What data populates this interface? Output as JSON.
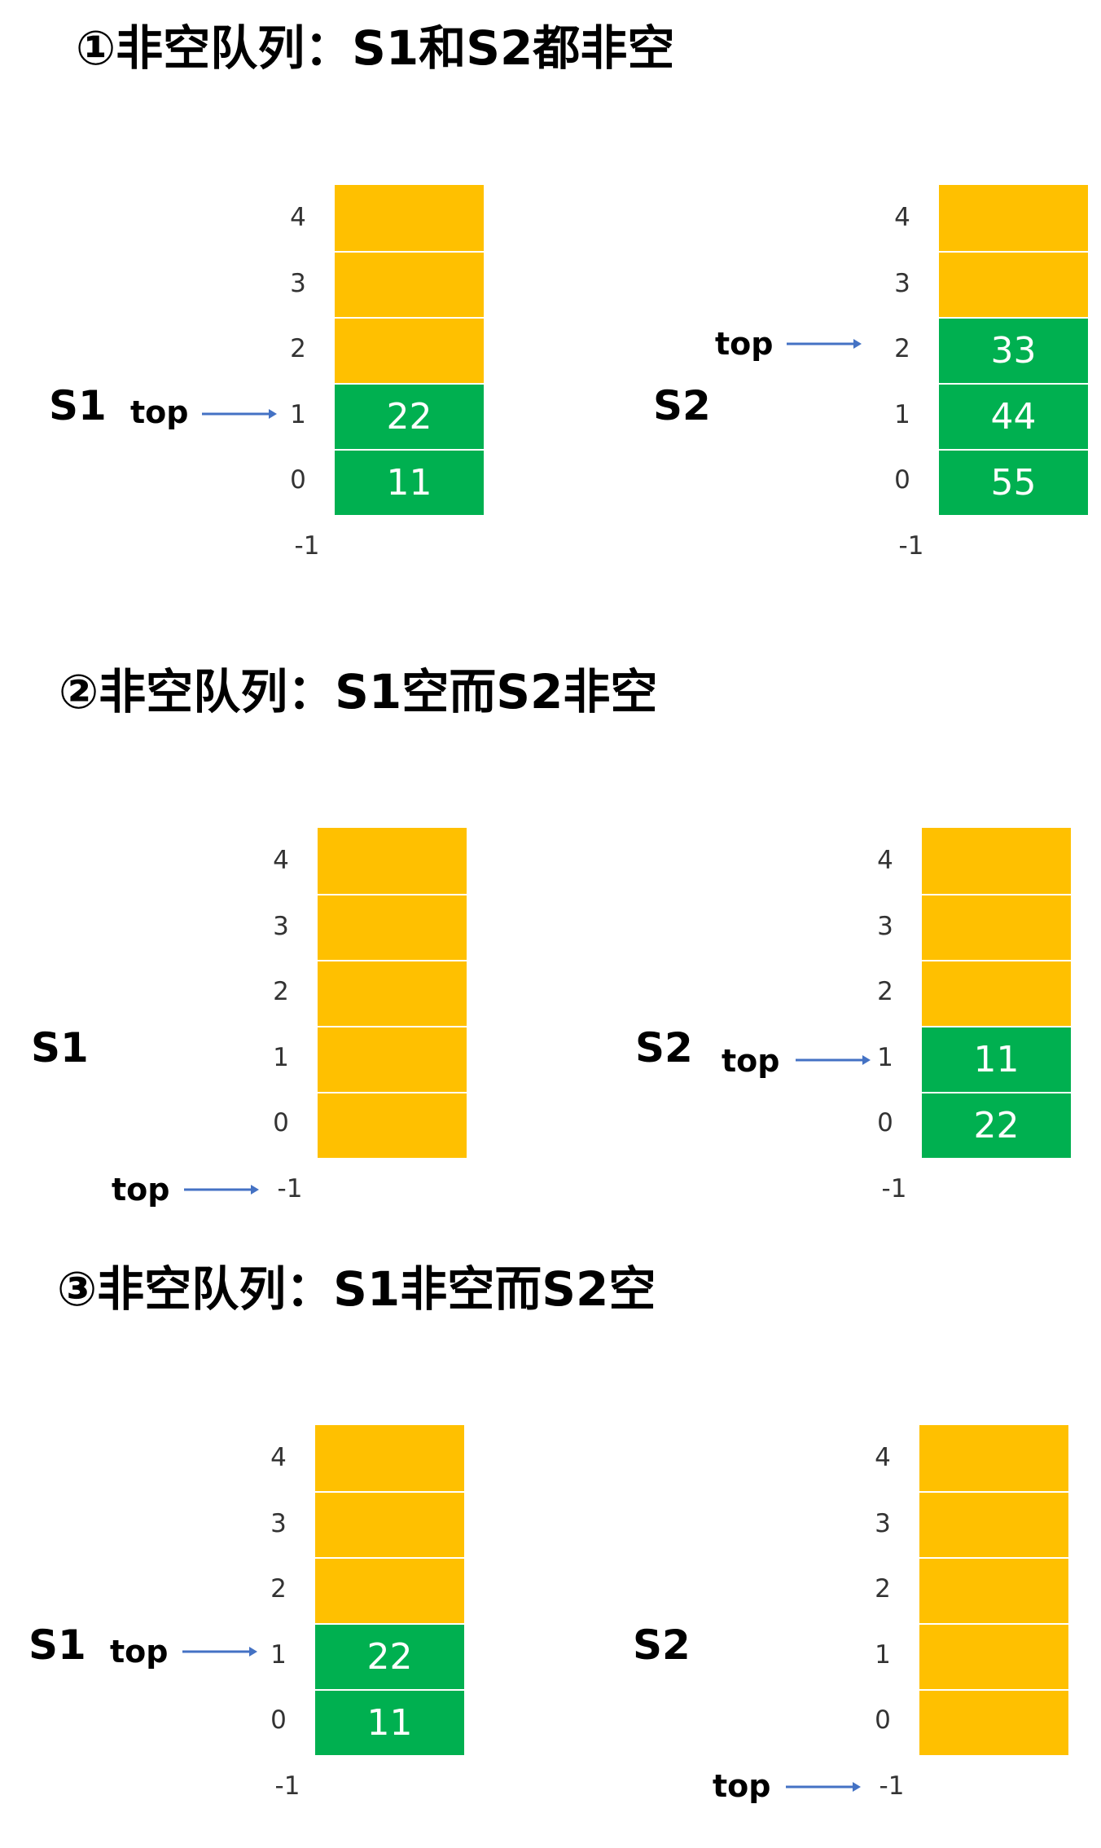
{
  "sections": [
    {
      "title": "①非空队列：S1和S2都非空",
      "stacks": [
        {
          "label": "S1",
          "top_label": "top",
          "top_index": 1,
          "indices": [
            "4",
            "3",
            "2",
            "1",
            "0",
            "-1"
          ],
          "cells": [
            {
              "value": "",
              "state": "empty"
            },
            {
              "value": "",
              "state": "empty"
            },
            {
              "value": "",
              "state": "empty"
            },
            {
              "value": "22",
              "state": "filled"
            },
            {
              "value": "11",
              "state": "filled"
            }
          ]
        },
        {
          "label": "S2",
          "top_label": "top",
          "top_index": 2,
          "indices": [
            "4",
            "3",
            "2",
            "1",
            "0",
            "-1"
          ],
          "cells": [
            {
              "value": "",
              "state": "empty"
            },
            {
              "value": "",
              "state": "empty"
            },
            {
              "value": "33",
              "state": "filled"
            },
            {
              "value": "44",
              "state": "filled"
            },
            {
              "value": "55",
              "state": "filled"
            }
          ]
        }
      ]
    },
    {
      "title": "②非空队列：S1空而S2非空",
      "stacks": [
        {
          "label": "S1",
          "top_label": "top",
          "top_index": -1,
          "indices": [
            "4",
            "3",
            "2",
            "1",
            "0",
            "-1"
          ],
          "cells": [
            {
              "value": "",
              "state": "empty"
            },
            {
              "value": "",
              "state": "empty"
            },
            {
              "value": "",
              "state": "empty"
            },
            {
              "value": "",
              "state": "empty"
            },
            {
              "value": "",
              "state": "empty"
            }
          ]
        },
        {
          "label": "S2",
          "top_label": "top",
          "top_index": 1,
          "indices": [
            "4",
            "3",
            "2",
            "1",
            "0",
            "-1"
          ],
          "cells": [
            {
              "value": "",
              "state": "empty"
            },
            {
              "value": "",
              "state": "empty"
            },
            {
              "value": "",
              "state": "empty"
            },
            {
              "value": "11",
              "state": "filled"
            },
            {
              "value": "22",
              "state": "filled"
            }
          ]
        }
      ]
    },
    {
      "title": "③非空队列：S1非空而S2空",
      "stacks": [
        {
          "label": "S1",
          "top_label": "top",
          "top_index": 1,
          "indices": [
            "4",
            "3",
            "2",
            "1",
            "0",
            "-1"
          ],
          "cells": [
            {
              "value": "",
              "state": "empty"
            },
            {
              "value": "",
              "state": "empty"
            },
            {
              "value": "",
              "state": "empty"
            },
            {
              "value": "22",
              "state": "filled"
            },
            {
              "value": "11",
              "state": "filled"
            }
          ]
        },
        {
          "label": "S2",
          "top_label": "top",
          "top_index": -1,
          "indices": [
            "4",
            "3",
            "2",
            "1",
            "0",
            "-1"
          ],
          "cells": [
            {
              "value": "",
              "state": "empty"
            },
            {
              "value": "",
              "state": "empty"
            },
            {
              "value": "",
              "state": "empty"
            },
            {
              "value": "",
              "state": "empty"
            },
            {
              "value": "",
              "state": "empty"
            }
          ]
        }
      ]
    }
  ],
  "colors": {
    "empty_cell": "#FFC000",
    "filled_cell": "#00B050",
    "arrow": "#4472C4",
    "cell_text": "#FFFFFF"
  }
}
